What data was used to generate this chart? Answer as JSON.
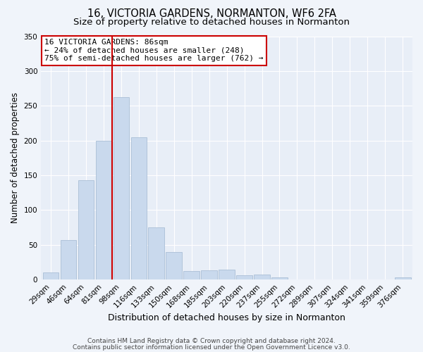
{
  "title": "16, VICTORIA GARDENS, NORMANTON, WF6 2FA",
  "subtitle": "Size of property relative to detached houses in Normanton",
  "xlabel": "Distribution of detached houses by size in Normanton",
  "ylabel": "Number of detached properties",
  "bar_labels": [
    "29sqm",
    "46sqm",
    "64sqm",
    "81sqm",
    "98sqm",
    "116sqm",
    "133sqm",
    "150sqm",
    "168sqm",
    "185sqm",
    "203sqm",
    "220sqm",
    "237sqm",
    "255sqm",
    "272sqm",
    "289sqm",
    "307sqm",
    "324sqm",
    "341sqm",
    "359sqm",
    "376sqm"
  ],
  "bar_values": [
    10,
    57,
    143,
    200,
    262,
    205,
    75,
    40,
    12,
    13,
    14,
    6,
    7,
    3,
    0,
    0,
    0,
    0,
    0,
    0,
    3
  ],
  "bar_color": "#c9d9ed",
  "bar_edge_color": "#aabfd6",
  "ylim": [
    0,
    350
  ],
  "yticks": [
    0,
    50,
    100,
    150,
    200,
    250,
    300,
    350
  ],
  "vline_x_index": 4,
  "vline_color": "#cc0000",
  "annotation_title": "16 VICTORIA GARDENS: 86sqm",
  "annotation_line1": "← 24% of detached houses are smaller (248)",
  "annotation_line2": "75% of semi-detached houses are larger (762) →",
  "annotation_box_facecolor": "#ffffff",
  "annotation_box_edgecolor": "#cc0000",
  "footer1": "Contains HM Land Registry data © Crown copyright and database right 2024.",
  "footer2": "Contains public sector information licensed under the Open Government Licence v3.0.",
  "fig_facecolor": "#f0f4fa",
  "plot_facecolor": "#e8eef7",
  "title_fontsize": 10.5,
  "subtitle_fontsize": 9.5,
  "xlabel_fontsize": 9,
  "ylabel_fontsize": 8.5,
  "tick_fontsize": 7.5,
  "annotation_fontsize": 8,
  "footer_fontsize": 6.5
}
